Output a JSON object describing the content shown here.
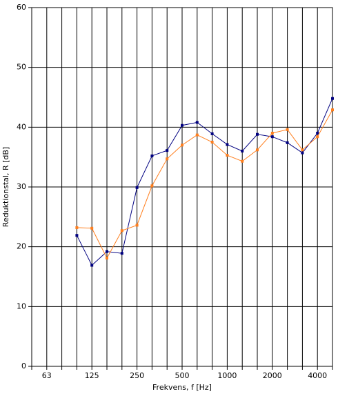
{
  "chart_data": {
    "type": "line",
    "xlabel": "Frekvens, f [Hz]",
    "ylabel": "Reduktionstal, R [dB]",
    "categories": [
      null,
      "63",
      null,
      null,
      "125",
      null,
      null,
      "250",
      null,
      null,
      "500",
      null,
      null,
      "1000",
      null,
      null,
      "2000",
      null,
      null,
      "4000",
      null
    ],
    "series": [
      {
        "color": "#000080",
        "values": [
          null,
          null,
          null,
          21.9,
          16.9,
          19.2,
          18.9,
          29.9,
          35.2,
          36.1,
          40.3,
          40.8,
          38.9,
          37.1,
          36.0,
          38.8,
          38.4,
          37.4,
          35.7,
          39.0,
          44.8
        ]
      },
      {
        "color": "#ff7f1e",
        "values": [
          null,
          null,
          null,
          23.2,
          23.1,
          18.1,
          22.7,
          23.6,
          30.2,
          34.7,
          37.0,
          38.7,
          37.5,
          35.3,
          34.3,
          36.2,
          39.0,
          39.6,
          36.2,
          38.4,
          42.9
        ]
      }
    ],
    "ylim": [
      0,
      60
    ],
    "yticks": [
      0,
      10,
      20,
      30,
      40,
      50,
      60
    ],
    "grid": true
  }
}
